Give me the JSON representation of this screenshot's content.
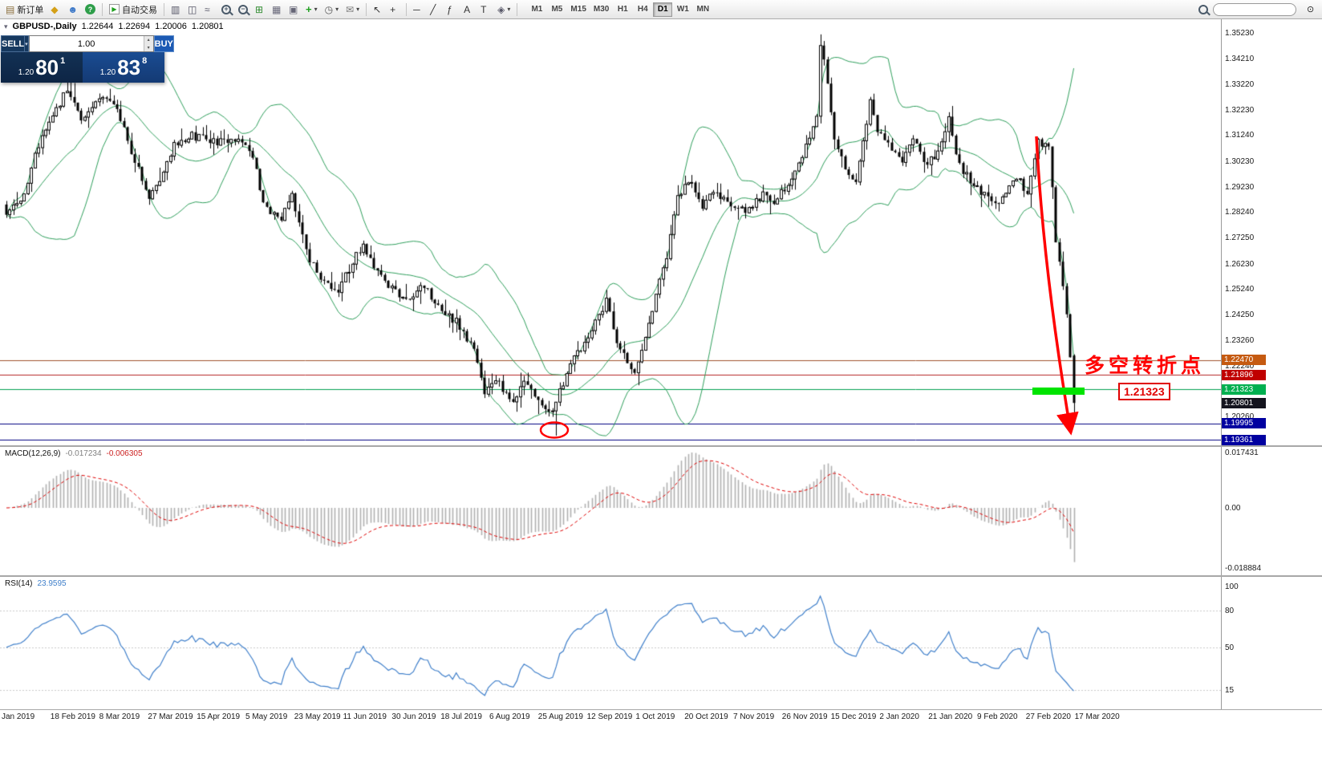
{
  "toolbar": {
    "timeframes": [
      "M1",
      "M5",
      "M15",
      "M30",
      "H1",
      "H4",
      "D1",
      "W1",
      "MN"
    ],
    "active_timeframe": "D1",
    "search_placeholder": "",
    "items": [
      {
        "t": "btn",
        "name": "new-order-button",
        "icon": "doc",
        "label": "新订单"
      },
      {
        "t": "btn",
        "name": "market-watch-button",
        "icon": "diamond"
      },
      {
        "t": "btn",
        "name": "accounts-button",
        "icon": "person"
      },
      {
        "t": "btn",
        "name": "help-button",
        "icon": "help"
      },
      {
        "t": "sep"
      },
      {
        "t": "btn",
        "name": "auto-trading-button",
        "icon": "play",
        "label": "自动交易"
      },
      {
        "t": "sep"
      },
      {
        "t": "btn",
        "name": "chart-bars-button",
        "icon": "bars"
      },
      {
        "t": "btn",
        "name": "chart-candles-button",
        "icon": "candles"
      },
      {
        "t": "btn",
        "name": "chart-line-button",
        "icon": "line"
      },
      {
        "t": "btn",
        "name": "zoom-in-button",
        "icon": "zoomin"
      },
      {
        "t": "btn",
        "name": "zoom-out-button",
        "icon": "zoomout"
      },
      {
        "t": "btn",
        "name": "tile-windows-button",
        "icon": "tile"
      },
      {
        "t": "btn",
        "name": "arrange-windows-button",
        "icon": "arrange"
      },
      {
        "t": "btn",
        "name": "cascade-windows-button",
        "icon": "cascade"
      },
      {
        "t": "btn",
        "name": "new-chart-button",
        "icon": "newchart",
        "caret": true
      },
      {
        "t": "btn",
        "name": "periods-button",
        "icon": "clock",
        "caret": true
      },
      {
        "t": "btn",
        "name": "templates-button",
        "icon": "mail",
        "caret": true
      },
      {
        "t": "sep"
      },
      {
        "t": "btn",
        "name": "cursor-button",
        "icon": "cursor"
      },
      {
        "t": "btn",
        "name": "crosshair-button",
        "icon": "crosshair"
      },
      {
        "t": "sep"
      },
      {
        "t": "btn",
        "name": "hline-tool-button",
        "icon": "hline"
      },
      {
        "t": "btn",
        "name": "trendline-tool-button",
        "icon": "trend"
      },
      {
        "t": "btn",
        "name": "fibonacci-tool-button",
        "icon": "fibo"
      },
      {
        "t": "btn",
        "name": "text-tool-button",
        "icon": "textA"
      },
      {
        "t": "btn",
        "name": "label-tool-button",
        "icon": "textT"
      },
      {
        "t": "btn",
        "name": "shapes-tool-button",
        "icon": "shapes",
        "caret": true
      },
      {
        "t": "sep"
      }
    ]
  },
  "trade_panel": {
    "sell_label": "SELL",
    "buy_label": "BUY",
    "volume": "1.00",
    "sell_quote": {
      "prefix": "1.20",
      "big": "80",
      "sup": "1"
    },
    "buy_quote": {
      "prefix": "1.20",
      "big": "83",
      "sup": "8"
    }
  },
  "symbol_info": {
    "name": "GBPUSD-,Daily",
    "open": "1.22644",
    "high": "1.22694",
    "low": "1.20006",
    "close": "1.20801"
  },
  "main_chart": {
    "price_labels": [
      "1.35230",
      "1.34210",
      "1.33220",
      "1.32230",
      "1.31240",
      "1.30230",
      "1.29230",
      "1.28240",
      "1.27250",
      "1.26230",
      "1.25240",
      "1.24250",
      "1.23260",
      "1.22240",
      "1.20260"
    ]
  },
  "macd": {
    "title": "MACD(12,26,9)",
    "value_main": "-0.017234",
    "value_signal": "-0.006305",
    "axis": [
      "0.017431",
      "0.00",
      "-0.018884"
    ]
  },
  "rsi": {
    "title": "RSI(14)",
    "value": "23.9595",
    "axis": [
      "100",
      "80",
      "50",
      "15"
    ]
  },
  "dates": [
    "Jan 2019",
    "18 Feb 2019",
    "8 Mar 2019",
    "27 Mar 2019",
    "15 Apr 2019",
    "5 May 2019",
    "23 May 2019",
    "11 Jun 2019",
    "30 Jun 2019",
    "18 Jul 2019",
    "6 Aug 2019",
    "25 Aug 2019",
    "12 Sep 2019",
    "1 Oct 2019",
    "20 Oct 2019",
    "7 Nov 2019",
    "26 Nov 2019",
    "15 Dec 2019",
    "2 Jan 2020",
    "21 Jan 2020",
    "9 Feb 2020",
    "27 Feb 2020",
    "17 Mar 2020"
  ],
  "annotations": {
    "turning_point_text": "多空转折点",
    "price_callout": "1.21323"
  },
  "chart_data": {
    "type": "candlestick",
    "symbol": "GBPUSD-",
    "timeframe": "Daily",
    "num_candles": 300,
    "seed": 20200317,
    "price_top": 1.3575,
    "price_bottom": 1.1915,
    "bollinger": {
      "period": 20,
      "deviation": 2,
      "color": "#2e9e5b"
    },
    "macd_params": {
      "fast": 12,
      "slow": 26,
      "signal": 9
    },
    "rsi_params": {
      "period": 14
    },
    "keyframes": [
      [
        0,
        1.28
      ],
      [
        5,
        1.29
      ],
      [
        8,
        1.305
      ],
      [
        12,
        1.318
      ],
      [
        17,
        1.33
      ],
      [
        21,
        1.318
      ],
      [
        26,
        1.328
      ],
      [
        31,
        1.323
      ],
      [
        34,
        1.31
      ],
      [
        40,
        1.289
      ],
      [
        43,
        1.295
      ],
      [
        47,
        1.308
      ],
      [
        52,
        1.312
      ],
      [
        59,
        1.31
      ],
      [
        66,
        1.311
      ],
      [
        69,
        1.305
      ],
      [
        72,
        1.285
      ],
      [
        77,
        1.28
      ],
      [
        80,
        1.289
      ],
      [
        85,
        1.264
      ],
      [
        88,
        1.256
      ],
      [
        93,
        1.252
      ],
      [
        97,
        1.263
      ],
      [
        100,
        1.27
      ],
      [
        104,
        1.259
      ],
      [
        108,
        1.252
      ],
      [
        113,
        1.248
      ],
      [
        117,
        1.254
      ],
      [
        122,
        1.243
      ],
      [
        126,
        1.24
      ],
      [
        131,
        1.228
      ],
      [
        134,
        1.213
      ],
      [
        138,
        1.216
      ],
      [
        142,
        1.207
      ],
      [
        145,
        1.218
      ],
      [
        149,
        1.209
      ],
      [
        152,
        1.203
      ],
      [
        154,
        1.208
      ],
      [
        157,
        1.22
      ],
      [
        160,
        1.228
      ],
      [
        163,
        1.233
      ],
      [
        168,
        1.248
      ],
      [
        171,
        1.232
      ],
      [
        176,
        1.22
      ],
      [
        178,
        1.23
      ],
      [
        181,
        1.245
      ],
      [
        185,
        1.265
      ],
      [
        188,
        1.288
      ],
      [
        191,
        1.295
      ],
      [
        195,
        1.285
      ],
      [
        198,
        1.29
      ],
      [
        203,
        1.286
      ],
      [
        207,
        1.282
      ],
      [
        212,
        1.289
      ],
      [
        215,
        1.285
      ],
      [
        218,
        1.292
      ],
      [
        222,
        1.3
      ],
      [
        225,
        1.312
      ],
      [
        227,
        1.32
      ],
      [
        228,
        1.348
      ],
      [
        230,
        1.333
      ],
      [
        232,
        1.312
      ],
      [
        235,
        1.3
      ],
      [
        238,
        1.295
      ],
      [
        241,
        1.318
      ],
      [
        242,
        1.326
      ],
      [
        244,
        1.315
      ],
      [
        248,
        1.306
      ],
      [
        251,
        1.302
      ],
      [
        254,
        1.31
      ],
      [
        258,
        1.301
      ],
      [
        261,
        1.306
      ],
      [
        264,
        1.318
      ],
      [
        267,
        1.3
      ],
      [
        270,
        1.295
      ],
      [
        273,
        1.29
      ],
      [
        277,
        1.286
      ],
      [
        280,
        1.29
      ],
      [
        284,
        1.296
      ],
      [
        286,
        1.288
      ],
      [
        289,
        1.31
      ],
      [
        292,
        1.308
      ],
      [
        293,
        1.292
      ],
      [
        294,
        1.27
      ],
      [
        296,
        1.254
      ],
      [
        297,
        1.242
      ],
      [
        298,
        1.227
      ],
      [
        299,
        1.208
      ]
    ],
    "spike_highs": [
      {
        "i": 228,
        "high": 1.3516
      }
    ],
    "spike_lows": [
      {
        "i": 154,
        "low": 1.1952
      }
    ],
    "last_candle": {
      "open": 1.22644,
      "high": 1.22694,
      "low": 1.20006,
      "close": 1.20801
    },
    "hlines": [
      {
        "price": 1.2247,
        "color": "#a0522d",
        "badge": "#c55a11",
        "label": "1.22470"
      },
      {
        "price": 1.21896,
        "color": "#b22222",
        "badge": "#c00000",
        "label": "1.21896"
      },
      {
        "price": 1.21323,
        "color": "#00a050",
        "badge": "#00b050",
        "label": "1.21323"
      },
      {
        "price": 1.19995,
        "color": "#000080",
        "badge": "#0000a0",
        "label": "1.19995"
      },
      {
        "price": 1.19361,
        "color": "#000080",
        "badge": "#0000a0",
        "label": "1.19361"
      }
    ],
    "current_price": {
      "price": 1.20801,
      "label": "1.20801",
      "badge": "#14141e"
    }
  }
}
